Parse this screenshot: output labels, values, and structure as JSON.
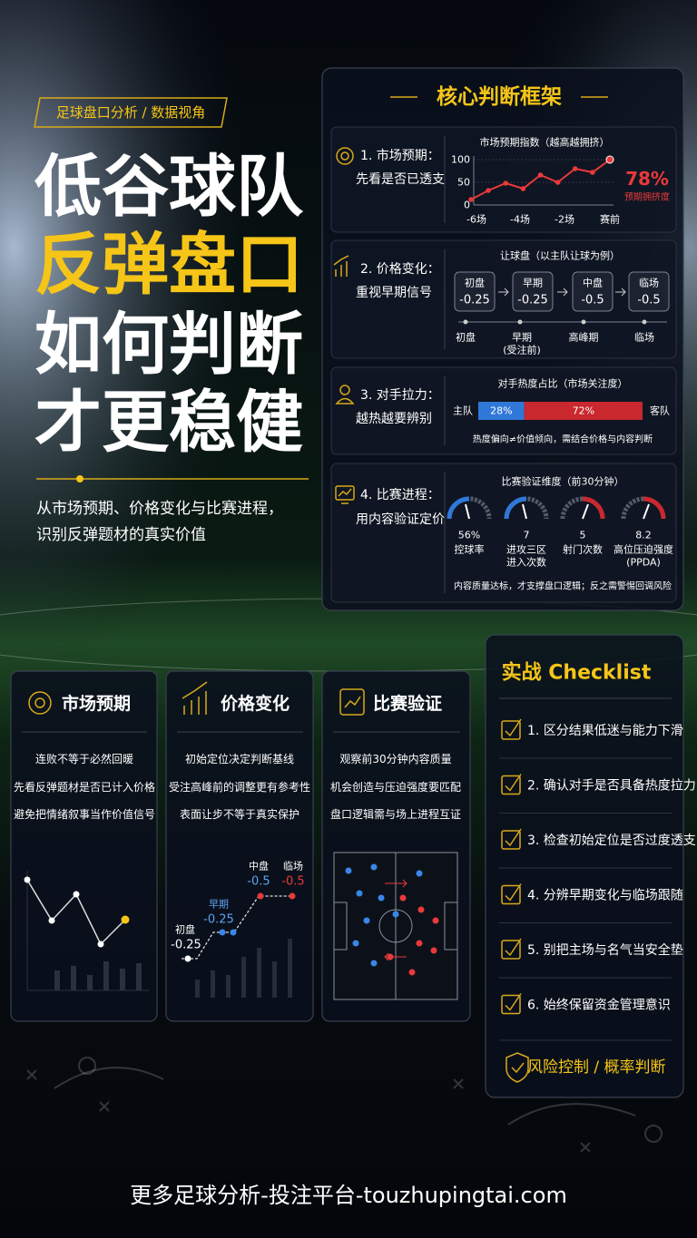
{
  "header": {
    "tag": "足球盘口分析 / 数据视角",
    "title_lines": [
      "低谷球队",
      "反弹盘口",
      "如何判断",
      "才更稳健"
    ],
    "subtitle_lines": [
      "从市场预期、价格变化与比赛进程，",
      "识别反弹题材的真实价值"
    ]
  },
  "framework": {
    "title": "核心判断框架",
    "items": [
      {
        "label": "1. 市场预期：",
        "desc": "先看是否已透支",
        "chart": {
          "title": "市场预期指数（越高越拥挤）",
          "ylim": [
            0,
            100
          ],
          "yticks": [
            0,
            50,
            100
          ],
          "values": [
            12,
            32,
            48,
            36,
            66,
            50,
            80,
            72,
            100
          ],
          "xlabels": [
            "-6场",
            "-4场",
            "-2场",
            "赛前"
          ],
          "highlight": "78%",
          "highlight_note": "预期拥挤度"
        }
      },
      {
        "label": "2. 价格变化：",
        "desc": "重视早期信号",
        "chart": {
          "title": "让球盘（以主队让球为例）",
          "boxes": [
            {
              "name": "初盘",
              "value": "-0.25"
            },
            {
              "name": "早期",
              "value": "-0.25"
            },
            {
              "name": "中盘",
              "value": "-0.5"
            },
            {
              "name": "临场",
              "value": "-0.5"
            }
          ],
          "timeline": [
            [
              "初盘"
            ],
            [
              "早期",
              "(受注前)"
            ],
            [
              "高峰期"
            ],
            [
              "临场"
            ]
          ]
        }
      },
      {
        "label": "3. 对手拉力：",
        "desc": "越热越要辨别",
        "chart": {
          "title": "对手热度占比（市场关注度）",
          "home": "主队",
          "away": "客队",
          "home_share": {
            "value": 28,
            "label": "28%"
          },
          "away_share": {
            "value": 72,
            "label": "72%"
          },
          "note": "热度偏向≠价值倾向，需结合价格与内容判断"
        }
      },
      {
        "label": "4. 比赛进程：",
        "desc": "用内容验证定价",
        "chart": {
          "title": "比赛验证维度（前30分钟）",
          "gauges": [
            {
              "value": "56%",
              "label": [
                "控球率"
              ]
            },
            {
              "value": "7",
              "label": [
                "进攻三区",
                "进入次数"
              ]
            },
            {
              "value": "5",
              "label": [
                "射门次数"
              ]
            },
            {
              "value": "8.2",
              "label": [
                "高位压迫强度",
                "(PPDA)"
              ]
            }
          ],
          "note": "内容质量达标，才支撑盘口逻辑；反之需警惕回调风险"
        }
      }
    ]
  },
  "cards": [
    {
      "title": "市场预期",
      "lines": [
        "连败不等于必然回暖",
        "先看反弹题材是否已计入价格",
        "避免把情绪叙事当作价值信号"
      ]
    },
    {
      "title": "价格变化",
      "lines": [
        "初始定位决定判断基线",
        "受注高峰前的调整更有参考性",
        "表面让步不等于真实保护"
      ],
      "points": [
        {
          "name": "初盘",
          "value": "-0.25"
        },
        {
          "name": "早期",
          "value": "-0.25"
        },
        {
          "name": "中盘",
          "value": "-0.5"
        },
        {
          "name": "临场",
          "value": "-0.5"
        }
      ]
    },
    {
      "title": "比赛验证",
      "lines": [
        "观察前30分钟内容质量",
        "机会创造与压迫强度要匹配",
        "盘口逻辑需与场上进程互证"
      ]
    }
  ],
  "checklist": {
    "title": "实战 Checklist",
    "items": [
      "1. 区分结果低迷与能力下滑",
      "2. 确认对手是否具备热度拉力",
      "3. 检查初始定位是否过度透支",
      "4. 分辨早期变化与临场跟随",
      "5. 别把主场与名气当安全垫",
      "6. 始终保留资金管理意识"
    ],
    "footer": "风险控制 / 概率判断"
  },
  "footer": "更多足球分析-投注平台-touzhupingtai.com"
}
